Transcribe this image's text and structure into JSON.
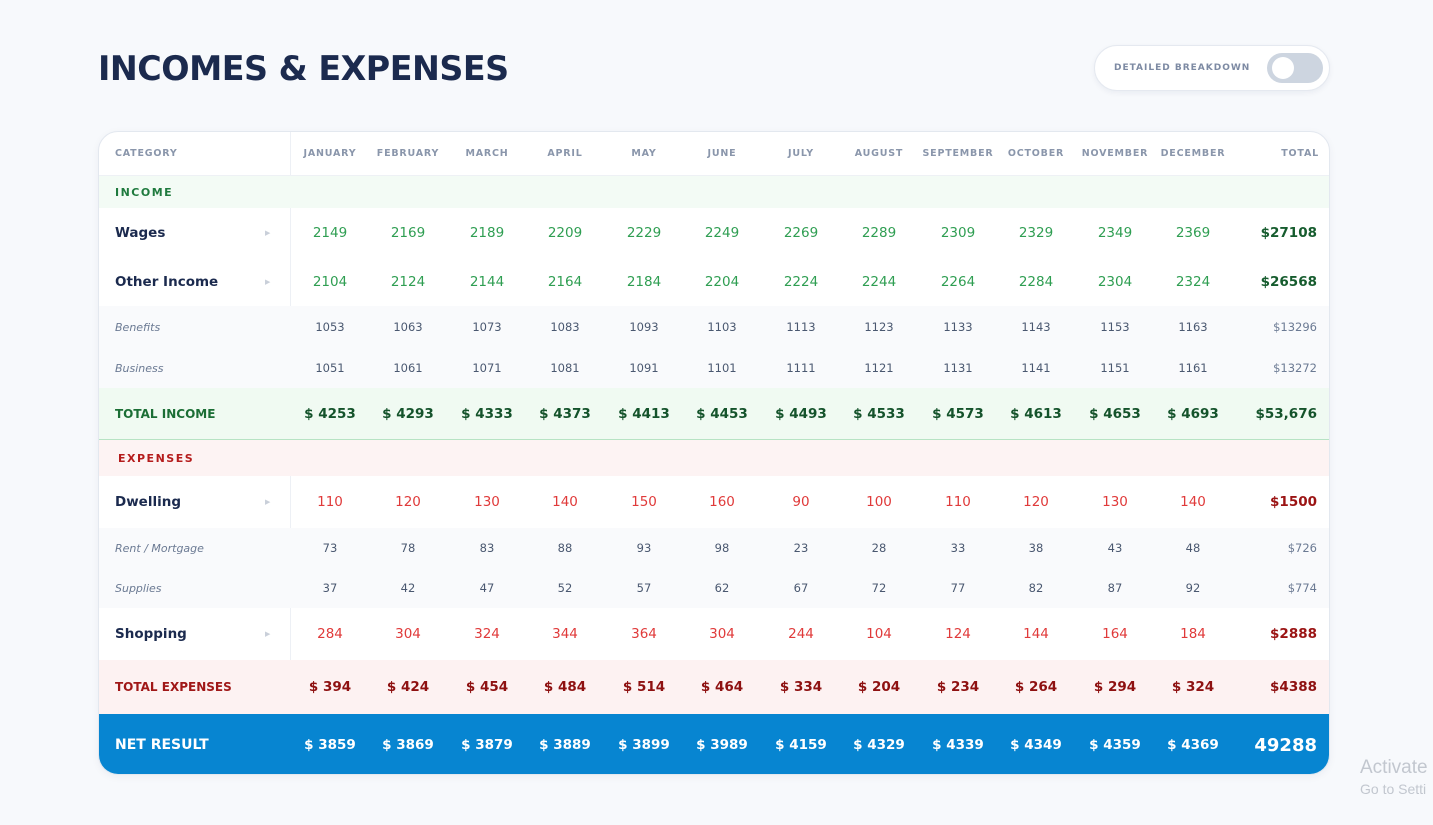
{
  "title": "INCOMES & EXPENSES",
  "toggle": {
    "label": "DETAILED BREAKDOWN",
    "on": false
  },
  "columns": [
    "CATEGORY",
    "JANUARY",
    "FEBRUARY",
    "MARCH",
    "APRIL",
    "MAY",
    "JUNE",
    "JULY",
    "AUGUST",
    "SEPTEMBER",
    "OCTOBER",
    "NOVEMBER",
    "DECEMBER",
    "TOTAL"
  ],
  "income": {
    "label": "INCOME",
    "wages": {
      "name": "Wages",
      "values": [
        "2149",
        "2169",
        "2189",
        "2209",
        "2229",
        "2249",
        "2269",
        "2289",
        "2309",
        "2329",
        "2349",
        "2369"
      ],
      "total": "$27108"
    },
    "other": {
      "name": "Other Income",
      "values": [
        "2104",
        "2124",
        "2144",
        "2164",
        "2184",
        "2204",
        "2224",
        "2244",
        "2264",
        "2284",
        "2304",
        "2324"
      ],
      "total": "$26568"
    },
    "benefits": {
      "name": "Benefits",
      "values": [
        "1053",
        "1063",
        "1073",
        "1083",
        "1093",
        "1103",
        "1113",
        "1123",
        "1133",
        "1143",
        "1153",
        "1163"
      ],
      "total": "$13296"
    },
    "business": {
      "name": "Business",
      "values": [
        "1051",
        "1061",
        "1071",
        "1081",
        "1091",
        "1101",
        "1111",
        "1121",
        "1131",
        "1141",
        "1151",
        "1161"
      ],
      "total": "$13272"
    },
    "total": {
      "name": "TOTAL INCOME",
      "values": [
        "$ 4253",
        "$ 4293",
        "$ 4333",
        "$ 4373",
        "$ 4413",
        "$ 4453",
        "$ 4493",
        "$ 4533",
        "$ 4573",
        "$ 4613",
        "$ 4653",
        "$ 4693"
      ],
      "total": "$53,676"
    }
  },
  "expenses": {
    "label": "EXPENSES",
    "dwelling": {
      "name": "Dwelling",
      "values": [
        "110",
        "120",
        "130",
        "140",
        "150",
        "160",
        "90",
        "100",
        "110",
        "120",
        "130",
        "140"
      ],
      "total": "$1500"
    },
    "rent": {
      "name": "Rent / Mortgage",
      "values": [
        "73",
        "78",
        "83",
        "88",
        "93",
        "98",
        "23",
        "28",
        "33",
        "38",
        "43",
        "48"
      ],
      "total": "$726"
    },
    "supplies": {
      "name": "Supplies",
      "values": [
        "37",
        "42",
        "47",
        "52",
        "57",
        "62",
        "67",
        "72",
        "77",
        "82",
        "87",
        "92"
      ],
      "total": "$774"
    },
    "shopping": {
      "name": "Shopping",
      "values": [
        "284",
        "304",
        "324",
        "344",
        "364",
        "304",
        "244",
        "104",
        "124",
        "144",
        "164",
        "184"
      ],
      "total": "$2888"
    },
    "total": {
      "name": "TOTAL EXPENSES",
      "values": [
        "$ 394",
        "$ 424",
        "$ 454",
        "$ 484",
        "$ 514",
        "$ 464",
        "$ 334",
        "$ 204",
        "$ 234",
        "$ 264",
        "$ 294",
        "$ 324"
      ],
      "total": "$4388"
    }
  },
  "net": {
    "name": "NET RESULT",
    "values": [
      "$ 3859",
      "$ 3869",
      "$ 3879",
      "$ 3889",
      "$ 3899",
      "$ 3989",
      "$ 4159",
      "$ 4329",
      "$ 4339",
      "$ 4349",
      "$ 4359",
      "$ 4369"
    ],
    "total": "49288"
  },
  "watermark": {
    "line1": "Activate",
    "line2": "Go to Setti"
  },
  "colors": {
    "net_bar": "#0785d1",
    "income_green": "#2f9e52",
    "expense_red": "#e03a3a",
    "title": "#1b2a4e"
  }
}
